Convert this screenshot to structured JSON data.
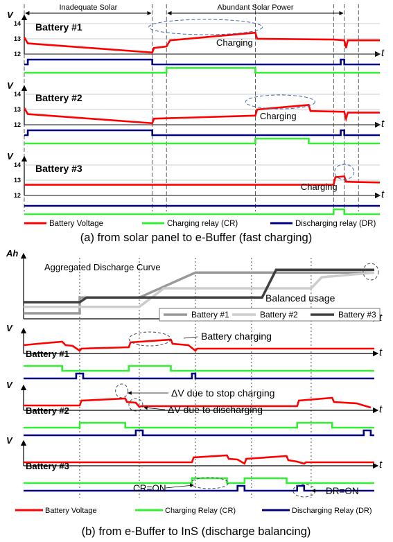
{
  "chart_data": [
    {
      "type": "line",
      "caption": "(a) from solar panel to e-Buffer (fast charging)",
      "x": [
        0,
        1.5,
        3.6,
        3.65,
        4.0,
        6.5,
        6.55,
        8.7,
        9.0,
        9.3,
        10.0
      ],
      "phase_markers": [
        0,
        3.6,
        4.0,
        6.5,
        8.7,
        9.0,
        9.4
      ],
      "phases": [
        {
          "label": "Inadequate Solar",
          "x_range": [
            0,
            3.6
          ]
        },
        {
          "label": "Abundant Solar Power",
          "x_range": [
            4.0,
            9.0
          ]
        }
      ],
      "ylabel": "V",
      "xlabel": "t",
      "ylim": [
        12,
        14
      ],
      "yticks": [
        12,
        13,
        14
      ],
      "panels": [
        {
          "title": "Battery #1",
          "voltage": [
            [
              0,
              13.1
            ],
            [
              0.1,
              12.7
            ],
            [
              3.6,
              12.1
            ],
            [
              3.65,
              12.4
            ],
            [
              4.0,
              12.5
            ],
            [
              4.1,
              12.9
            ],
            [
              6.5,
              13.4
            ],
            [
              6.55,
              13.0
            ],
            [
              8.7,
              12.95
            ],
            [
              9.0,
              12.9
            ],
            [
              9.05,
              12.4
            ],
            [
              9.1,
              12.9
            ],
            [
              10.0,
              12.9
            ]
          ],
          "cr": [
            [
              0,
              0
            ],
            [
              4.0,
              0
            ],
            [
              4.0,
              1
            ],
            [
              6.5,
              1
            ],
            [
              6.5,
              0
            ],
            [
              10.0,
              0
            ]
          ],
          "dr": [
            [
              0,
              0
            ],
            [
              0.1,
              0
            ],
            [
              0.1,
              1
            ],
            [
              3.6,
              1
            ],
            [
              3.6,
              0
            ],
            [
              8.9,
              0
            ],
            [
              8.9,
              1
            ],
            [
              9.0,
              1
            ],
            [
              9.0,
              0
            ],
            [
              10.0,
              0
            ]
          ],
          "annotation": "Charging"
        },
        {
          "title": "Battery #2",
          "voltage": [
            [
              0,
              13.1
            ],
            [
              0.1,
              12.7
            ],
            [
              3.6,
              12.1
            ],
            [
              3.65,
              12.4
            ],
            [
              6.5,
              12.6
            ],
            [
              6.55,
              13.0
            ],
            [
              8.0,
              13.3
            ],
            [
              8.05,
              12.9
            ],
            [
              9.0,
              12.85
            ],
            [
              9.05,
              12.4
            ],
            [
              9.1,
              12.8
            ],
            [
              10.0,
              12.8
            ]
          ],
          "cr": [
            [
              0,
              0
            ],
            [
              6.5,
              0
            ],
            [
              6.5,
              1
            ],
            [
              8.0,
              1
            ],
            [
              8.0,
              0
            ],
            [
              10.0,
              0
            ]
          ],
          "dr": [
            [
              0,
              0
            ],
            [
              0.1,
              0
            ],
            [
              0.1,
              1
            ],
            [
              3.6,
              1
            ],
            [
              3.6,
              0
            ],
            [
              8.9,
              0
            ],
            [
              8.9,
              1
            ],
            [
              9.0,
              1
            ],
            [
              9.0,
              0
            ],
            [
              10.0,
              0
            ]
          ],
          "annotation": "Charging"
        },
        {
          "title": "Battery #3",
          "voltage": [
            [
              0,
              12.7
            ],
            [
              8.7,
              12.7
            ],
            [
              8.75,
              13.2
            ],
            [
              9.0,
              13.25
            ],
            [
              9.05,
              12.9
            ],
            [
              10.0,
              12.85
            ]
          ],
          "cr": [
            [
              0,
              0
            ],
            [
              8.7,
              0
            ],
            [
              8.7,
              1
            ],
            [
              9.0,
              1
            ],
            [
              9.0,
              0
            ],
            [
              10.0,
              0
            ]
          ],
          "dr": [
            [
              0,
              0
            ],
            [
              10.0,
              0
            ]
          ],
          "annotation": "Charging"
        }
      ],
      "legend": [
        {
          "name": "Battery Voltage",
          "color": "#ff0000"
        },
        {
          "name": "Charging relay (CR)",
          "color": "#33ee33"
        },
        {
          "name": "Discharging relay (DR)",
          "color": "#000080"
        }
      ]
    },
    {
      "type": "line",
      "caption": "(b) from e-Buffer to InS (discharge balancing)",
      "markers": [
        1.6,
        3.3,
        4.9,
        6.5,
        8.2
      ],
      "aggregated": {
        "title": "Aggregated Discharge Curve",
        "ylabel": "Ah",
        "xlabel": "t",
        "ylim": [
          0,
          6
        ],
        "series": [
          {
            "name": "Battery #1",
            "color": "#999999",
            "points": [
              [
                0,
                0.6
              ],
              [
                1.6,
                0.6
              ],
              [
                1.6,
                2.3
              ],
              [
                3.3,
                2.3
              ],
              [
                4.9,
                5.0
              ],
              [
                10,
                5.0
              ]
            ]
          },
          {
            "name": "Battery #2",
            "color": "#cccccc",
            "points": [
              [
                0,
                1.3
              ],
              [
                3.3,
                1.3
              ],
              [
                4.0,
                3.3
              ],
              [
                8.2,
                3.3
              ],
              [
                8.5,
                4.5
              ],
              [
                10,
                5.0
              ]
            ]
          },
          {
            "name": "Battery #3",
            "color": "#404040",
            "points": [
              [
                0,
                1.8
              ],
              [
                1.6,
                1.8
              ],
              [
                1.8,
                2.3
              ],
              [
                6.8,
                2.3
              ],
              [
                7.2,
                5.3
              ],
              [
                10,
                5.3
              ]
            ]
          }
        ],
        "annotation": "Balanced usage"
      },
      "ylabel": "V",
      "xlabel": "t",
      "panels": [
        {
          "title": "Battery #1",
          "voltage": [
            [
              0,
              0.6
            ],
            [
              0.4,
              0.7
            ],
            [
              1.1,
              0.85
            ],
            [
              1.2,
              0.6
            ],
            [
              1.4,
              0.55
            ],
            [
              1.6,
              0.2
            ],
            [
              1.65,
              0.35
            ],
            [
              3.0,
              0.45
            ],
            [
              3.05,
              0.8
            ],
            [
              4.2,
              1.0
            ],
            [
              4.25,
              0.7
            ],
            [
              4.7,
              0.6
            ],
            [
              4.9,
              0.2
            ],
            [
              4.95,
              0.35
            ],
            [
              10,
              0.35
            ]
          ],
          "cr": [
            [
              0,
              1
            ],
            [
              1.1,
              1
            ],
            [
              1.1,
              0
            ],
            [
              3.0,
              0
            ],
            [
              3.0,
              1
            ],
            [
              4.2,
              1
            ],
            [
              4.2,
              0
            ],
            [
              10,
              0
            ]
          ],
          "dr": [
            [
              0,
              0
            ],
            [
              1.5,
              0
            ],
            [
              1.5,
              1
            ],
            [
              1.7,
              1
            ],
            [
              1.7,
              0
            ],
            [
              4.8,
              0
            ],
            [
              4.8,
              1
            ],
            [
              4.9,
              1
            ],
            [
              4.9,
              0
            ],
            [
              10,
              0
            ]
          ],
          "annotation": "Battery charging"
        },
        {
          "title": "Battery #2",
          "voltage": [
            [
              0,
              0.35
            ],
            [
              1.6,
              0.35
            ],
            [
              1.65,
              0.7
            ],
            [
              2.9,
              0.85
            ],
            [
              2.95,
              0.6
            ],
            [
              3.2,
              0.55
            ],
            [
              3.3,
              0.25
            ],
            [
              3.35,
              0.3
            ],
            [
              7.8,
              0.3
            ],
            [
              7.85,
              0.7
            ],
            [
              8.8,
              0.9
            ],
            [
              8.85,
              0.6
            ],
            [
              9.5,
              0.5
            ],
            [
              9.9,
              0.2
            ]
          ],
          "cr": [
            [
              0,
              0
            ],
            [
              1.6,
              0
            ],
            [
              1.6,
              1
            ],
            [
              2.9,
              1
            ],
            [
              2.9,
              0
            ],
            [
              7.8,
              0
            ],
            [
              7.8,
              1
            ],
            [
              8.8,
              1
            ],
            [
              8.8,
              0
            ],
            [
              10,
              0
            ]
          ],
          "dr": [
            [
              0,
              0
            ],
            [
              3.2,
              0
            ],
            [
              3.2,
              1
            ],
            [
              3.4,
              1
            ],
            [
              3.4,
              0
            ],
            [
              9.7,
              0
            ],
            [
              9.7,
              1
            ],
            [
              9.9,
              1
            ],
            [
              9.9,
              0
            ],
            [
              10,
              0
            ]
          ],
          "annotations": [
            "ΔV due to stop charging",
            "ΔV due to discharging"
          ]
        },
        {
          "title": "Battery #3",
          "voltage": [
            [
              0,
              0.25
            ],
            [
              4.8,
              0.25
            ],
            [
              4.85,
              0.6
            ],
            [
              5.8,
              0.75
            ],
            [
              5.85,
              0.5
            ],
            [
              6.1,
              0.45
            ],
            [
              6.3,
              0.15
            ],
            [
              6.35,
              0.5
            ],
            [
              7.5,
              0.7
            ],
            [
              7.55,
              0.4
            ],
            [
              7.8,
              0.3
            ],
            [
              8.0,
              0.15
            ],
            [
              8.05,
              0.25
            ],
            [
              10,
              0.25
            ]
          ],
          "cr": [
            [
              0,
              0
            ],
            [
              4.8,
              0
            ],
            [
              4.8,
              1
            ],
            [
              5.8,
              1
            ],
            [
              5.8,
              0
            ],
            [
              6.3,
              0
            ],
            [
              6.3,
              1
            ],
            [
              7.5,
              1
            ],
            [
              7.5,
              0
            ],
            [
              10,
              0
            ]
          ],
          "dr": [
            [
              0,
              0
            ],
            [
              6.1,
              0
            ],
            [
              6.1,
              1
            ],
            [
              6.3,
              1
            ],
            [
              6.3,
              0
            ],
            [
              7.8,
              0
            ],
            [
              7.8,
              1
            ],
            [
              8.0,
              1
            ],
            [
              8.0,
              0
            ],
            [
              10,
              0
            ]
          ],
          "annotations": [
            "CR=ON",
            "DR=ON"
          ]
        }
      ],
      "legend": [
        {
          "name": "Battery Voltage",
          "color": "#ff0000"
        },
        {
          "name": "Charging Relay (CR)",
          "color": "#33ee33"
        },
        {
          "name": "Discharging Relay (DR)",
          "color": "#000080"
        }
      ]
    }
  ]
}
